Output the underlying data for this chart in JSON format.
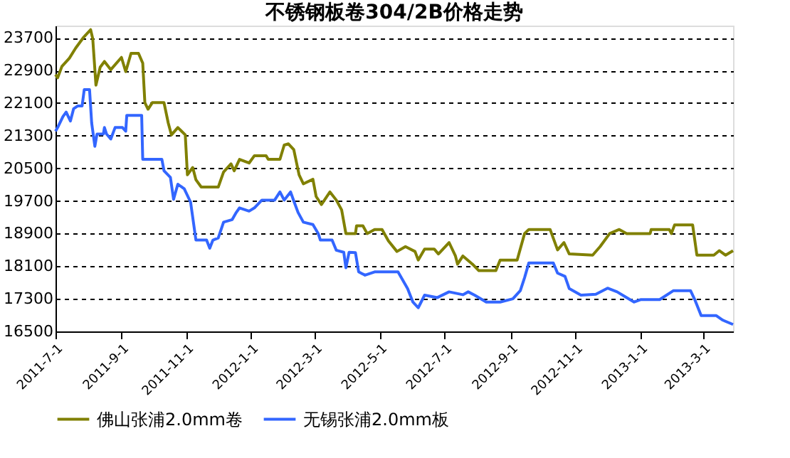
{
  "chart_data": {
    "type": "line",
    "title": "不锈钢板卷304/2B价格走势",
    "xlim": [
      "2011-07-01",
      "2013-03-29"
    ],
    "xticks": [
      {
        "value": "2011-07-01",
        "label": "2011-7-1"
      },
      {
        "value": "2011-09-01",
        "label": "2011-9-1"
      },
      {
        "value": "2011-11-01",
        "label": "2011-11-1"
      },
      {
        "value": "2012-01-01",
        "label": "2012-1-1"
      },
      {
        "value": "2012-03-01",
        "label": "2012-3-1"
      },
      {
        "value": "2012-05-01",
        "label": "2012-5-1"
      },
      {
        "value": "2012-07-01",
        "label": "2012-7-1"
      },
      {
        "value": "2012-09-01",
        "label": "2012-9-1"
      },
      {
        "value": "2012-11-01",
        "label": "2012-11-1"
      },
      {
        "value": "2013-01-01",
        "label": "2013-1-1"
      },
      {
        "value": "2013-03-01",
        "label": "2013-3-1"
      }
    ],
    "ylim": [
      16500,
      24000
    ],
    "yticks": [
      16500,
      17300,
      18100,
      18900,
      19700,
      20500,
      21300,
      22100,
      22900,
      23700
    ],
    "grid": "y",
    "legend": "bottom",
    "marker": "none",
    "line_style": "solid",
    "series": [
      {
        "name": "佛山张浦2.0mm卷",
        "color": "#808000",
        "x": [
          "2011-07-01",
          "2011-07-03",
          "2011-07-07",
          "2011-07-14",
          "2011-07-20",
          "2011-07-27",
          "2011-08-03",
          "2011-08-05",
          "2011-08-08",
          "2011-08-12",
          "2011-08-16",
          "2011-08-22",
          "2011-09-01",
          "2011-09-05",
          "2011-09-10",
          "2011-09-17",
          "2011-09-21",
          "2011-09-23",
          "2011-09-26",
          "2011-09-30",
          "2011-10-11",
          "2011-10-15",
          "2011-10-18",
          "2011-10-24",
          "2011-10-31",
          "2011-11-02",
          "2011-11-07",
          "2011-11-10",
          "2011-11-15",
          "2011-12-01",
          "2011-12-06",
          "2011-12-13",
          "2011-12-16",
          "2011-12-21",
          "2011-12-30",
          "2012-01-04",
          "2012-01-15",
          "2012-01-17",
          "2012-01-28",
          "2012-02-01",
          "2012-02-05",
          "2012-02-10",
          "2012-02-15",
          "2012-02-19",
          "2012-02-28",
          "2012-03-02",
          "2012-03-07",
          "2012-03-15",
          "2012-03-21",
          "2012-03-26",
          "2012-03-30",
          "2012-04-08",
          "2012-04-09",
          "2012-04-15",
          "2012-04-19",
          "2012-04-26",
          "2012-05-03",
          "2012-05-09",
          "2012-05-17",
          "2012-05-25",
          "2012-06-03",
          "2012-06-06",
          "2012-06-12",
          "2012-06-21",
          "2012-06-25",
          "2012-07-05",
          "2012-07-11",
          "2012-07-13",
          "2012-07-18",
          "2012-07-27",
          "2012-08-02",
          "2012-08-18",
          "2012-08-22",
          "2012-09-07",
          "2012-09-14",
          "2012-09-18",
          "2012-10-08",
          "2012-10-15",
          "2012-10-21",
          "2012-10-26",
          "2012-11-17",
          "2012-11-24",
          "2012-12-03",
          "2012-12-12",
          "2012-12-19",
          "2013-01-10",
          "2013-01-11",
          "2013-01-28",
          "2013-01-30",
          "2013-02-02",
          "2013-02-19",
          "2013-02-23",
          "2013-03-11",
          "2013-03-16",
          "2013-03-22",
          "2013-03-29"
        ],
        "values": [
          22800,
          22720,
          23000,
          23200,
          23450,
          23700,
          23900,
          23680,
          22540,
          22980,
          23120,
          22920,
          23220,
          22870,
          23320,
          23320,
          23080,
          22110,
          21950,
          22110,
          22110,
          21610,
          21320,
          21500,
          21320,
          20340,
          20520,
          20220,
          20040,
          20040,
          20410,
          20610,
          20440,
          20720,
          20630,
          20810,
          20810,
          20720,
          20720,
          21070,
          21100,
          20960,
          20340,
          20120,
          20230,
          19810,
          19610,
          19920,
          19720,
          19480,
          18900,
          18900,
          19090,
          19090,
          18900,
          19000,
          19000,
          18720,
          18460,
          18580,
          18460,
          18250,
          18520,
          18520,
          18400,
          18680,
          18350,
          18150,
          18350,
          18150,
          17990,
          17990,
          18250,
          18250,
          18900,
          19000,
          19000,
          18500,
          18680,
          18400,
          18370,
          18580,
          18900,
          19000,
          18900,
          18900,
          19000,
          19000,
          18900,
          19110,
          19110,
          18370,
          18370,
          18480,
          18370,
          18480
        ]
      },
      {
        "name": "无锡张浦2.0mm板",
        "color": "#3366ff",
        "x": [
          "2011-07-01",
          "2011-07-03",
          "2011-07-08",
          "2011-07-11",
          "2011-07-15",
          "2011-07-18",
          "2011-07-22",
          "2011-07-26",
          "2011-07-28",
          "2011-08-02",
          "2011-08-04",
          "2011-08-07",
          "2011-08-09",
          "2011-08-15",
          "2011-08-16",
          "2011-08-18",
          "2011-08-22",
          "2011-08-26",
          "2011-09-02",
          "2011-09-05",
          "2011-09-06",
          "2011-09-20",
          "2011-09-21",
          "2011-10-09",
          "2011-10-11",
          "2011-10-17",
          "2011-10-20",
          "2011-10-24",
          "2011-10-30",
          "2011-11-05",
          "2011-11-10",
          "2011-11-20",
          "2011-11-23",
          "2011-11-26",
          "2011-12-01",
          "2011-12-06",
          "2011-12-14",
          "2011-12-18",
          "2011-12-21",
          "2011-12-30",
          "2012-01-04",
          "2012-01-11",
          "2012-01-23",
          "2012-01-28",
          "2012-02-01",
          "2012-02-07",
          "2012-02-10",
          "2012-02-14",
          "2012-02-19",
          "2012-02-28",
          "2012-03-04",
          "2012-03-06",
          "2012-03-17",
          "2012-03-21",
          "2012-03-28",
          "2012-03-30",
          "2012-04-02",
          "2012-04-08",
          "2012-04-11",
          "2012-04-17",
          "2012-04-26",
          "2012-05-18",
          "2012-05-27",
          "2012-06-01",
          "2012-06-06",
          "2012-06-12",
          "2012-06-24",
          "2012-07-05",
          "2012-07-18",
          "2012-07-23",
          "2012-07-29",
          "2012-08-09",
          "2012-08-22",
          "2012-09-03",
          "2012-09-10",
          "2012-09-14",
          "2012-09-18",
          "2012-10-11",
          "2012-10-15",
          "2012-10-22",
          "2012-10-26",
          "2012-11-06",
          "2012-11-20",
          "2012-12-01",
          "2012-12-10",
          "2012-12-19",
          "2012-12-26",
          "2013-01-01",
          "2013-01-19",
          "2013-02-01",
          "2013-02-17",
          "2013-02-21",
          "2013-02-27",
          "2013-03-13",
          "2013-03-19",
          "2013-03-29"
        ],
        "values": [
          21410,
          21500,
          21770,
          21880,
          21660,
          21960,
          22030,
          22030,
          22430,
          22430,
          21610,
          21040,
          21340,
          21340,
          21500,
          21340,
          21220,
          21500,
          21500,
          21410,
          21800,
          21800,
          20720,
          20720,
          20440,
          20280,
          19740,
          20110,
          20000,
          19670,
          18740,
          18740,
          18540,
          18740,
          18790,
          19180,
          19240,
          19420,
          19530,
          19450,
          19530,
          19720,
          19720,
          19920,
          19720,
          19920,
          19700,
          19420,
          19180,
          19120,
          18900,
          18740,
          18740,
          18490,
          18440,
          18060,
          18440,
          18430,
          17960,
          17880,
          17960,
          17960,
          17550,
          17220,
          17080,
          17390,
          17330,
          17470,
          17400,
          17470,
          17390,
          17220,
          17220,
          17300,
          17500,
          17820,
          18180,
          18180,
          17930,
          17850,
          17550,
          17390,
          17410,
          17560,
          17470,
          17330,
          17220,
          17280,
          17280,
          17500,
          17500,
          17280,
          16890,
          16890,
          16780,
          16670
        ]
      }
    ]
  }
}
